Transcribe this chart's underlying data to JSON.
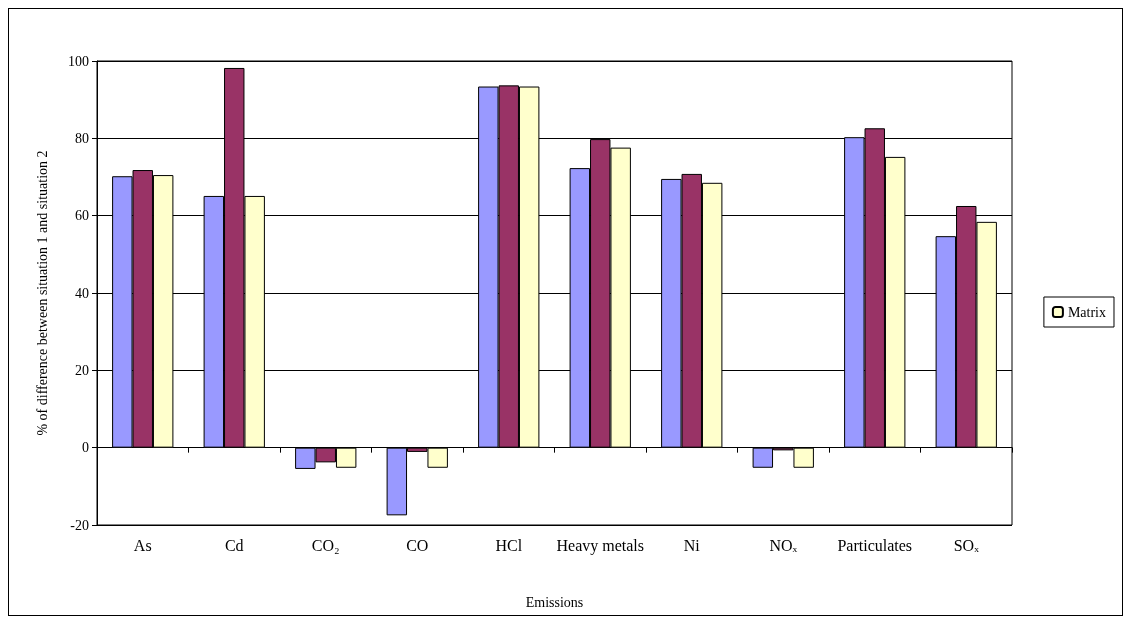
{
  "chart_data": {
    "type": "bar",
    "xlabel": "Emissions",
    "ylabel": "% of difference between situation 1 and situation 2",
    "categories": [
      "As",
      "Cd",
      "CO₂",
      "CO",
      "HCl",
      "Heavy metals",
      "Ni",
      "NOₓ",
      "Particulates",
      "SOₓ"
    ],
    "series": [
      {
        "color": "#9999ff",
        "values": [
          70.2,
          65.1,
          -5.5,
          -17.5,
          93.4,
          72.3,
          69.5,
          -5.2,
          80.3,
          54.7
        ]
      },
      {
        "color": "#993366",
        "values": [
          71.8,
          98.2,
          -3.8,
          -1.1,
          93.7,
          79.8,
          70.8,
          -0.7,
          82.6,
          62.5
        ]
      },
      {
        "name": "Matrix",
        "color": "#ffffcc",
        "values": [
          70.5,
          65.1,
          -5.2,
          -5.2,
          93.4,
          77.6,
          68.5,
          -5.2,
          75.2,
          58.4
        ]
      }
    ],
    "ylim": [
      -20,
      100
    ],
    "yticks": [
      -20,
      0,
      20,
      40,
      60,
      80,
      100
    ],
    "grid": "y",
    "legend": "right"
  }
}
